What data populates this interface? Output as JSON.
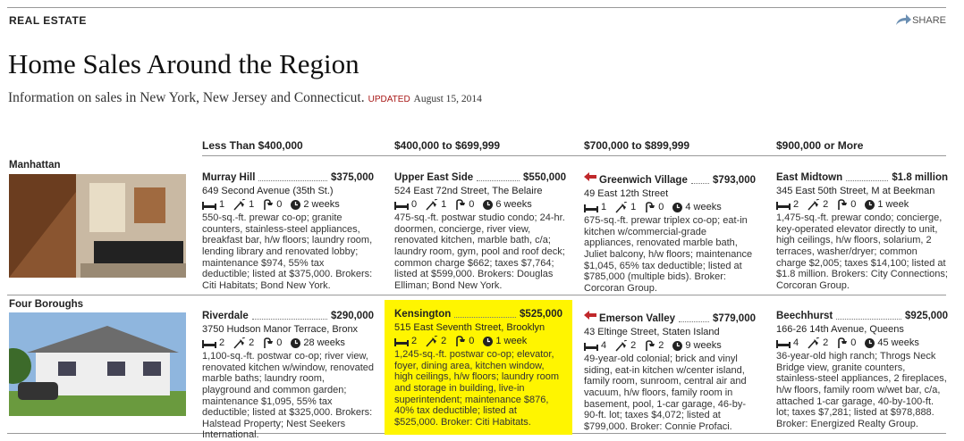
{
  "header": {
    "section": "REAL ESTATE",
    "share": "SHARE",
    "title": "Home Sales Around the Region",
    "subtitle": "Information on sales in New York, New Jersey and Connecticut.",
    "updated_label": "UPDATED",
    "updated_date": "August 15, 2014"
  },
  "columns": [
    "Less Than $400,000",
    "$400,000 to $699,999",
    "$700,000 to $899,999",
    "$900,000 or More"
  ],
  "regions": [
    {
      "name": "Manhattan",
      "listings": [
        {
          "name": "Murray Hill",
          "price": "$375,000",
          "address": "649 Second Avenue (35th St.)",
          "beds": 1,
          "baths": 1,
          "half_baths": 0,
          "time": "2 weeks",
          "description": "550-sq.-ft. prewar co-op; granite counters, stainless-steel appliances, breakfast bar, h/w floors; laundry room, lending library and renovated lobby; maintenance $974, 55% tax deductible; listed at $375,000. Brokers: Citi Habitats; Bond New York."
        },
        {
          "name": "Upper East Side",
          "price": "$550,000",
          "address": "524 East 72nd Street, The Belaire",
          "beds": 0,
          "baths": 1,
          "half_baths": 0,
          "time": "6 weeks",
          "description": "475-sq.-ft. postwar studio condo; 24-hr. doormen, concierge, river view, renovated kitchen, marble bath, c/a; laundry room, gym, pool and roof deck; common charge $662; taxes $7,764; listed at $599,000. Brokers: Douglas Elliman; Bond New York."
        },
        {
          "name": "Greenwich Village",
          "price": "$793,000",
          "arrow": true,
          "address": "49 East 12th Street",
          "beds": 1,
          "baths": 1,
          "half_baths": 0,
          "time": "4 weeks",
          "description": "675-sq.-ft. prewar triplex co-op; eat-in kitchen w/commercial-grade appliances, renovated marble bath, Juliet balcony, h/w floors; maintenance $1,045, 65% tax deductible; listed at $785,000 (multiple bids). Broker: Corcoran Group."
        },
        {
          "name": "East Midtown",
          "price": "$1.8 million",
          "address": "345 East 50th Street, M at Beekman",
          "beds": 2,
          "baths": 2,
          "half_baths": 0,
          "time": "1 week",
          "description": "1,475-sq.-ft. prewar condo; concierge, key-operated elevator directly to unit, high ceilings, h/w floors, solarium, 2 terraces, washer/dryer; common charge $2,005; taxes $14,100; listed at $1.8 million. Brokers: City Connections; Corcoran Group."
        }
      ]
    },
    {
      "name": "Four Boroughs",
      "listings": [
        {
          "name": "Riverdale",
          "price": "$290,000",
          "address": "3750 Hudson Manor Terrace, Bronx",
          "beds": 2,
          "baths": 2,
          "half_baths": 0,
          "time": "28 weeks",
          "description": "1,100-sq.-ft. postwar co-op; river view, renovated kitchen w/window, renovated marble baths; laundry room, playground and common garden; maintenance $1,095, 55% tax deductible; listed at $325,000. Brokers: Halstead Property; Nest Seekers International."
        },
        {
          "name": "Kensington",
          "price": "$525,000",
          "highlight": true,
          "address": "515 East Seventh Street, Brooklyn",
          "beds": 2,
          "baths": 2,
          "half_baths": 0,
          "time": "1 week",
          "description": "1,245-sq.-ft. postwar co-op; elevator, foyer, dining area, kitchen window, high ceilings, h/w floors; laundry room and storage in building, live-in superintendent; maintenance $876, 40% tax deductible; listed at $525,000. Broker: Citi Habitats."
        },
        {
          "name": "Emerson Valley",
          "price": "$779,000",
          "arrow": true,
          "address": "43 Eltinge Street, Staten Island",
          "beds": 4,
          "baths": 2,
          "half_baths": 2,
          "time": "9 weeks",
          "description": "49-year-old colonial; brick and vinyl siding, eat-in kitchen w/center island, family room, sunroom, central air and vacuum, h/w floors, family room in basement, pool, 1-car garage, 46-by-90-ft. lot; taxes $4,072; listed at $799,000. Broker: Connie Profaci."
        },
        {
          "name": "Beechhurst",
          "price": "$925,000",
          "address": "166-26 14th Avenue, Queens",
          "beds": 4,
          "baths": 2,
          "half_baths": 0,
          "time": "45 weeks",
          "description": "36-year-old high ranch; Throgs Neck Bridge view, granite counters, stainless-steel appliances, 2 fireplaces, h/w floors, family room w/wet bar, c/a, attached 1-car garage, 40-by-100-ft. lot; taxes $7,281; listed at $978,888. Broker: Energized Realty Group."
        }
      ]
    }
  ]
}
